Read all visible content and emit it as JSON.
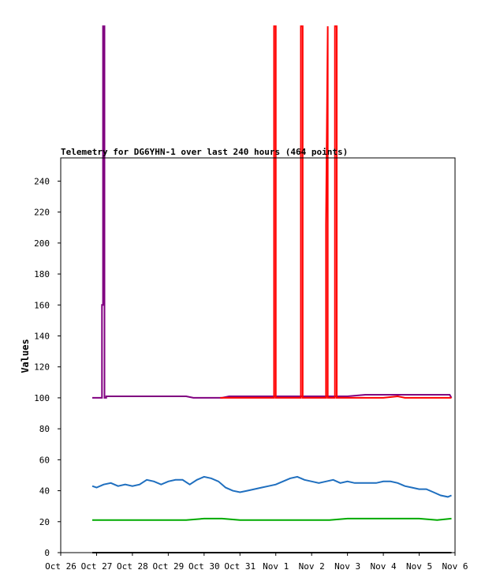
{
  "chart_data": {
    "type": "line",
    "title": "Telemetry for DG6YHN-1 over last 240 hours (464 points)",
    "xlabel": "",
    "ylabel": "Values",
    "x_ticks": [
      "Oct 26",
      "Oct 27",
      "Oct 28",
      "Oct 29",
      "Oct 30",
      "Oct 31",
      "Nov 1",
      "Nov 2",
      "Nov 3",
      "Nov 4",
      "Nov 5",
      "Nov 6"
    ],
    "y_ticks": [
      0,
      20,
      40,
      60,
      80,
      100,
      120,
      140,
      160,
      180,
      200,
      220,
      240
    ],
    "ylim": [
      0,
      255
    ],
    "xlim_days": [
      0,
      11
    ],
    "grid": false,
    "legend": "none",
    "series": [
      {
        "color": "#800080",
        "x": [
          0.88,
          1.15,
          1.15,
          1.18,
          1.18,
          1.22,
          1.22,
          1.27,
          1.27,
          1.5,
          2.0,
          2.5,
          3.0,
          3.5,
          3.7,
          4.0,
          4.2,
          4.5,
          4.7,
          5.0,
          5.5,
          6.0,
          6.5,
          7.0,
          7.5,
          8.0,
          8.5,
          8.8,
          9.0,
          9.5,
          10.0,
          10.5,
          10.85,
          10.9
        ],
        "y": [
          100,
          100,
          160,
          160,
          340,
          340,
          100,
          100,
          101,
          101,
          101,
          101,
          101,
          101,
          100,
          100,
          100,
          100,
          101,
          101,
          101,
          101,
          101,
          101,
          101,
          101,
          102,
          102,
          102,
          102,
          102,
          102,
          102,
          100
        ]
      },
      {
        "color": "#ff0000",
        "x": [
          4.45,
          5.0,
          5.5,
          5.95,
          5.95,
          6.0,
          6.0,
          6.7,
          6.7,
          6.75,
          6.75,
          7.4,
          7.4,
          7.45,
          7.45,
          7.65,
          7.65,
          7.7,
          7.7,
          8.0,
          8.5,
          9.0,
          9.4,
          9.6,
          10.0,
          10.5,
          10.9
        ],
        "y": [
          100,
          100,
          100,
          100,
          340,
          340,
          100,
          100,
          340,
          340,
          100,
          100,
          212,
          340,
          100,
          100,
          340,
          340,
          100,
          100,
          100,
          100,
          101,
          100,
          100,
          100,
          100
        ]
      },
      {
        "color": "#1f6fbf",
        "x": [
          0.88,
          1.0,
          1.2,
          1.4,
          1.6,
          1.8,
          2.0,
          2.2,
          2.4,
          2.6,
          2.8,
          3.0,
          3.2,
          3.4,
          3.6,
          3.8,
          4.0,
          4.2,
          4.4,
          4.6,
          4.8,
          5.0,
          5.2,
          5.4,
          5.6,
          5.8,
          6.0,
          6.2,
          6.4,
          6.6,
          6.8,
          7.0,
          7.2,
          7.4,
          7.6,
          7.8,
          8.0,
          8.2,
          8.4,
          8.6,
          8.8,
          9.0,
          9.2,
          9.4,
          9.6,
          9.8,
          10.0,
          10.2,
          10.4,
          10.6,
          10.8,
          10.9
        ],
        "y": [
          43,
          42,
          44,
          45,
          43,
          44,
          43,
          44,
          47,
          46,
          44,
          46,
          47,
          47,
          44,
          47,
          49,
          48,
          46,
          42,
          40,
          39,
          40,
          41,
          42,
          43,
          44,
          46,
          48,
          49,
          47,
          46,
          45,
          46,
          47,
          45,
          46,
          45,
          45,
          45,
          45,
          46,
          46,
          45,
          43,
          42,
          41,
          41,
          39,
          37,
          36,
          37
        ]
      },
      {
        "color": "#00aa00",
        "x": [
          0.88,
          1.3,
          1.6,
          2.0,
          2.5,
          3.0,
          3.5,
          4.0,
          4.5,
          5.0,
          5.5,
          6.0,
          6.5,
          7.0,
          7.5,
          8.0,
          8.5,
          9.0,
          9.5,
          10.0,
          10.5,
          10.9
        ],
        "y": [
          21,
          21,
          21,
          21,
          21,
          21,
          21,
          22,
          22,
          21,
          21,
          21,
          21,
          21,
          21,
          22,
          22,
          22,
          22,
          22,
          21,
          22
        ]
      },
      {
        "color": "#000000",
        "x": [
          0.88,
          10.9
        ],
        "y": [
          0,
          0
        ]
      }
    ]
  }
}
